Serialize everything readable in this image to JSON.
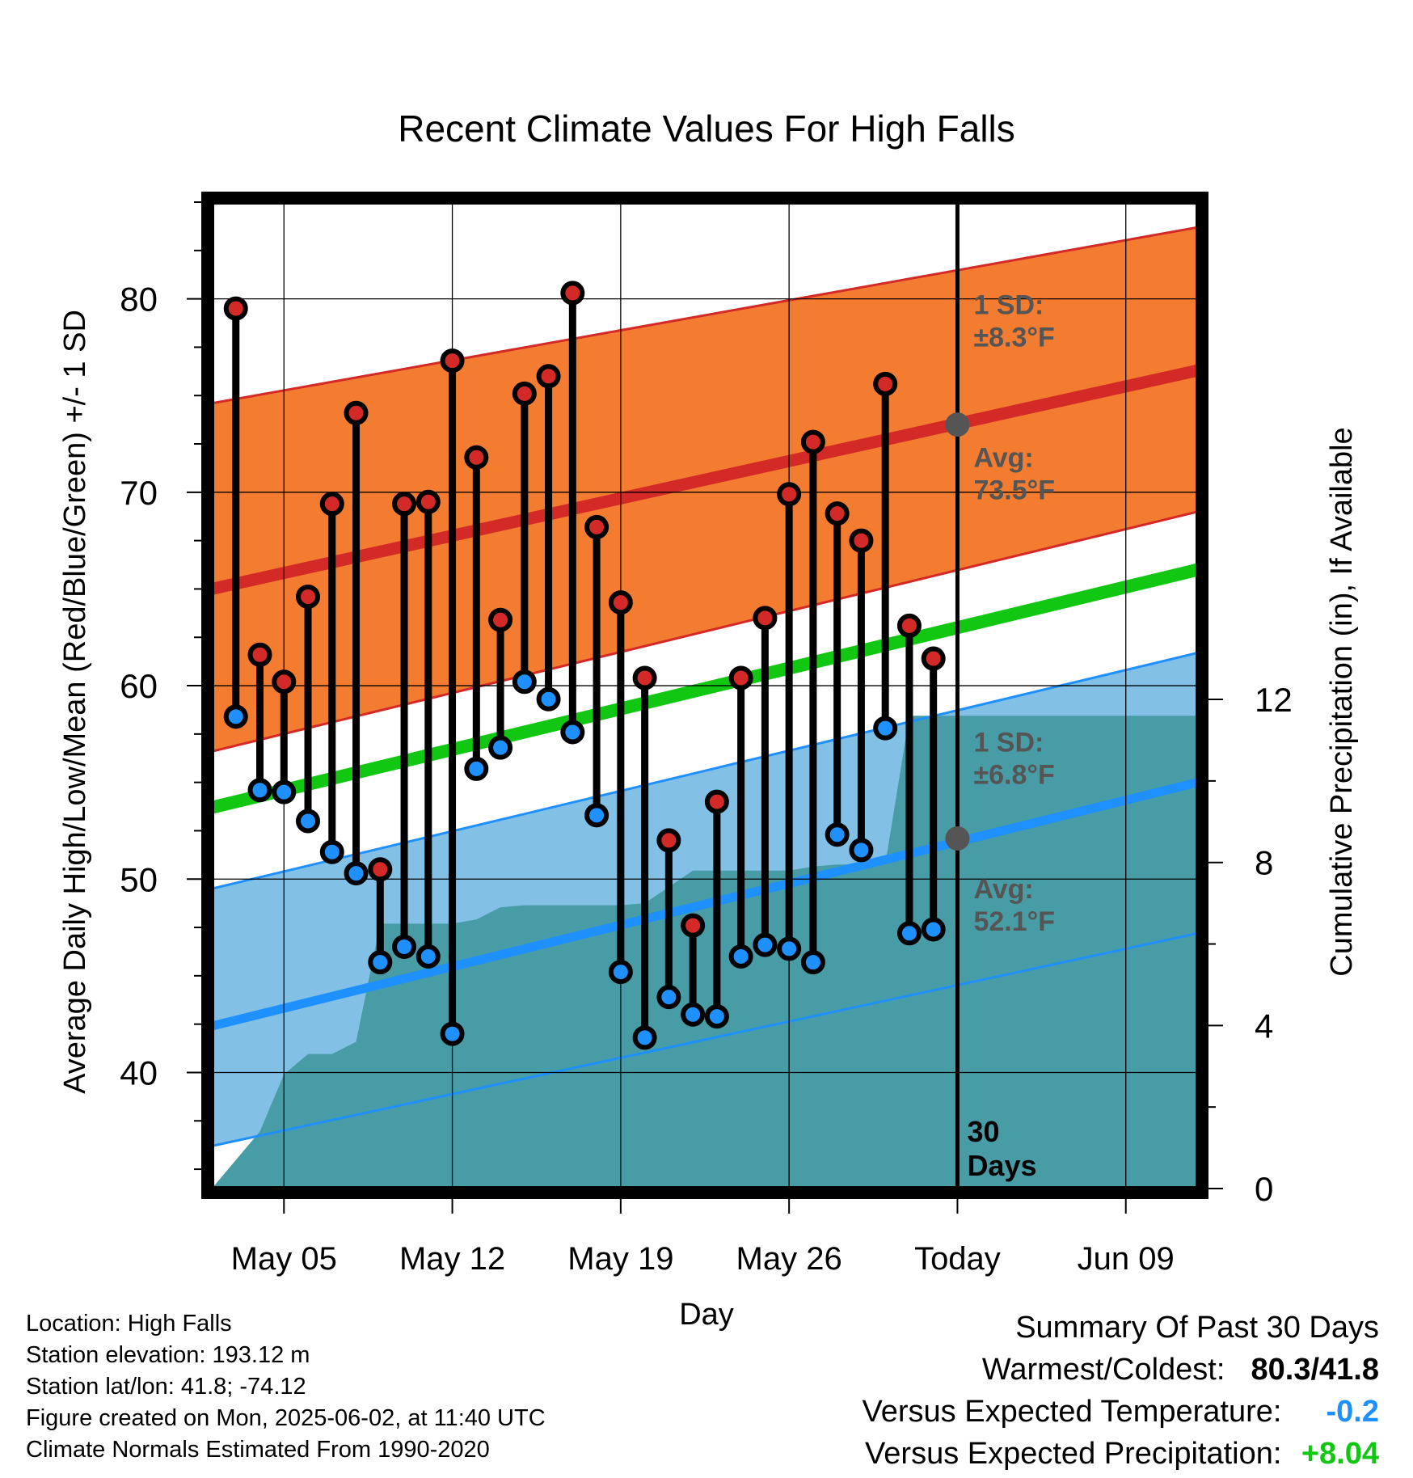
{
  "chart_data": {
    "type": "line",
    "title": "Recent Climate Values For High Falls",
    "xlabel": "Day",
    "ylabel": "Average Daily High/Low/Mean (Red/Blue/Green) +/- 1 SD",
    "y2label": "Cumulative Precipitation (in), If Available",
    "ylim": [
      34,
      85
    ],
    "y_ticks": [
      40,
      50,
      60,
      70,
      80
    ],
    "y2lim": [
      0,
      24.2
    ],
    "y2_ticks": [
      0,
      4,
      8,
      12
    ],
    "xlim": [
      "2025-05-02",
      "2025-06-12"
    ],
    "x_ticks": [
      {
        "date": "2025-05-05",
        "label": "May 05"
      },
      {
        "date": "2025-05-12",
        "label": "May 12"
      },
      {
        "date": "2025-05-19",
        "label": "May 19"
      },
      {
        "date": "2025-05-26",
        "label": "May 26"
      },
      {
        "date": "2025-06-02",
        "label": "Today"
      },
      {
        "date": "2025-06-09",
        "label": "Jun 09"
      }
    ],
    "today": "2025-06-02",
    "today_label": "30\nDays",
    "normals": {
      "dates": [
        "2025-05-02",
        "2025-06-12"
      ],
      "high_avg": [
        65.0,
        76.3
      ],
      "high_sd_upper": [
        74.6,
        83.7
      ],
      "high_sd_lower": [
        56.6,
        69.0
      ],
      "low_avg": [
        42.4,
        55.0
      ],
      "low_sd_upper": [
        49.5,
        61.7
      ],
      "low_sd_lower": [
        36.2,
        47.2
      ],
      "mean_avg": [
        53.7,
        66.0
      ]
    },
    "annotations": [
      {
        "line1": "1 SD:",
        "line2": "±8.3°F"
      },
      {
        "line1": "Avg:",
        "line2": "73.5°F",
        "value": 73.5
      },
      {
        "line1": "1 SD:",
        "line2": "±6.8°F"
      },
      {
        "line1": "Avg:",
        "line2": "52.1°F",
        "value": 52.1
      }
    ],
    "daily": {
      "dates": [
        "2025-05-03",
        "2025-05-04",
        "2025-05-05",
        "2025-05-06",
        "2025-05-07",
        "2025-05-08",
        "2025-05-09",
        "2025-05-10",
        "2025-05-11",
        "2025-05-12",
        "2025-05-13",
        "2025-05-14",
        "2025-05-15",
        "2025-05-16",
        "2025-05-17",
        "2025-05-18",
        "2025-05-19",
        "2025-05-20",
        "2025-05-21",
        "2025-05-22",
        "2025-05-23",
        "2025-05-24",
        "2025-05-25",
        "2025-05-26",
        "2025-05-27",
        "2025-05-28",
        "2025-05-29",
        "2025-05-30",
        "2025-05-31",
        "2025-06-01"
      ],
      "high": [
        79.5,
        61.6,
        60.2,
        64.6,
        69.4,
        74.1,
        50.5,
        69.4,
        69.5,
        76.8,
        71.8,
        63.4,
        75.1,
        76.0,
        80.3,
        68.2,
        64.3,
        60.4,
        52.0,
        47.6,
        54.0,
        60.4,
        63.5,
        69.9,
        72.6,
        68.9,
        67.5,
        75.6,
        63.1,
        61.4
      ],
      "low": [
        58.4,
        54.6,
        54.5,
        53.0,
        51.4,
        50.3,
        45.7,
        46.5,
        46.0,
        42.0,
        55.7,
        56.8,
        60.2,
        59.3,
        57.6,
        53.3,
        45.2,
        41.8,
        43.9,
        43.0,
        42.9,
        46.0,
        46.6,
        46.4,
        45.7,
        52.3,
        51.5,
        57.8,
        47.2,
        47.4
      ]
    },
    "precip_cumulative": {
      "dates": [
        "2025-05-02",
        "2025-05-03",
        "2025-05-04",
        "2025-05-05",
        "2025-05-06",
        "2025-05-07",
        "2025-05-08",
        "2025-05-09",
        "2025-05-10",
        "2025-05-11",
        "2025-05-12",
        "2025-05-13",
        "2025-05-14",
        "2025-05-15",
        "2025-05-16",
        "2025-05-17",
        "2025-05-18",
        "2025-05-19",
        "2025-05-20",
        "2025-05-21",
        "2025-05-22",
        "2025-05-23",
        "2025-05-24",
        "2025-05-25",
        "2025-05-26",
        "2025-05-27",
        "2025-05-28",
        "2025-05-29",
        "2025-05-30",
        "2025-05-31",
        "2025-06-01",
        "2025-06-02",
        "2025-06-12"
      ],
      "values": [
        0.0,
        0.7,
        1.4,
        2.8,
        3.3,
        3.3,
        3.6,
        6.5,
        6.5,
        6.5,
        6.5,
        6.6,
        6.9,
        6.95,
        6.95,
        6.95,
        6.95,
        6.95,
        7.0,
        7.4,
        7.8,
        7.8,
        7.8,
        7.8,
        7.8,
        7.9,
        7.95,
        7.95,
        7.95,
        11.6,
        11.6,
        11.6,
        11.6
      ]
    },
    "colors": {
      "high_band": "#f47c30",
      "high_line": "#d42a27",
      "low_band": "#82c0e6",
      "low_line": "#1e90ff",
      "mean_line": "#11c711",
      "precip": "#489ca6",
      "high_dot": "#d42a27",
      "low_dot": "#1e90ff",
      "annotation": "#555555"
    }
  },
  "footer": {
    "location": "Location: High Falls",
    "elevation": "Station elevation: 193.12 m",
    "latlon": "Station lat/lon: 41.8; -74.12",
    "created": "Figure created on Mon, 2025-06-02, at 11:40 UTC",
    "normals": "Climate Normals Estimated From 1990-2020"
  },
  "summary": {
    "title": "Summary Of Past 30 Days",
    "warm_cold_label": "Warmest/Coldest:",
    "warm_cold_value": "80.3/41.8",
    "temp_label": "Versus Expected Temperature:",
    "temp_value": "-0.2",
    "temp_color": "#1e90ff",
    "precip_label": "Versus Expected Precipitation:",
    "precip_value": "+8.04",
    "precip_color": "#11c711"
  }
}
